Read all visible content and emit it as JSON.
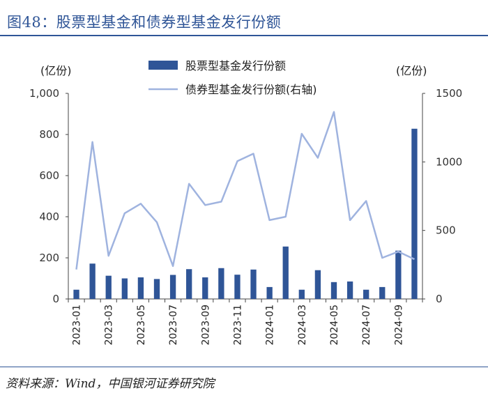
{
  "title": "图48：股票型基金和债券型基金发行份额",
  "source": "资料来源：Wind，中国银河证券研究院",
  "colors": {
    "bar": "#2f5597",
    "line": "#9fb3df",
    "title": "#2f5597"
  },
  "chart_data": {
    "type": "bar+line",
    "categories": [
      "2023-01",
      "2023-02",
      "2023-03",
      "2023-04",
      "2023-05",
      "2023-06",
      "2023-07",
      "2023-08",
      "2023-09",
      "2023-10",
      "2023-11",
      "2023-12",
      "2024-01",
      "2024-02",
      "2024-03",
      "2024-04",
      "2024-05",
      "2024-06",
      "2024-07",
      "2024-08",
      "2024-09",
      "2024-10"
    ],
    "x_tick_labels": [
      "2023-01",
      "2023-03",
      "2023-05",
      "2023-07",
      "2023-09",
      "2023-11",
      "2024-01",
      "2024-03",
      "2024-05",
      "2024-07",
      "2024-09"
    ],
    "series": [
      {
        "name": "股票型基金发行份额",
        "type": "bar",
        "axis": "left",
        "values": [
          45,
          172,
          113,
          100,
          105,
          97,
          117,
          145,
          105,
          150,
          118,
          143,
          58,
          255,
          45,
          140,
          82,
          85,
          45,
          58,
          235,
          828
        ]
      },
      {
        "name": "债券型基金发行份额(右轴)",
        "type": "line",
        "axis": "right",
        "values": [
          215,
          1145,
          315,
          625,
          695,
          560,
          240,
          840,
          685,
          710,
          1005,
          1060,
          575,
          600,
          1205,
          1030,
          1365,
          575,
          715,
          300,
          345,
          290
        ]
      }
    ],
    "left_axis": {
      "unit": "(亿份)",
      "ylim": [
        0,
        1000
      ],
      "ticks": [
        0,
        200,
        400,
        600,
        800,
        1000
      ],
      "tick_labels": [
        "0",
        "200",
        "400",
        "600",
        "800",
        "1,000"
      ]
    },
    "right_axis": {
      "unit": "(亿份)",
      "ylim": [
        0,
        1500
      ],
      "ticks": [
        0,
        500,
        1000,
        1500
      ],
      "tick_labels": [
        "0",
        "500",
        "1000",
        "1500"
      ]
    },
    "legend": {
      "placement": "top-center",
      "items": [
        "股票型基金发行份额",
        "债券型基金发行份额(右轴)"
      ]
    }
  }
}
